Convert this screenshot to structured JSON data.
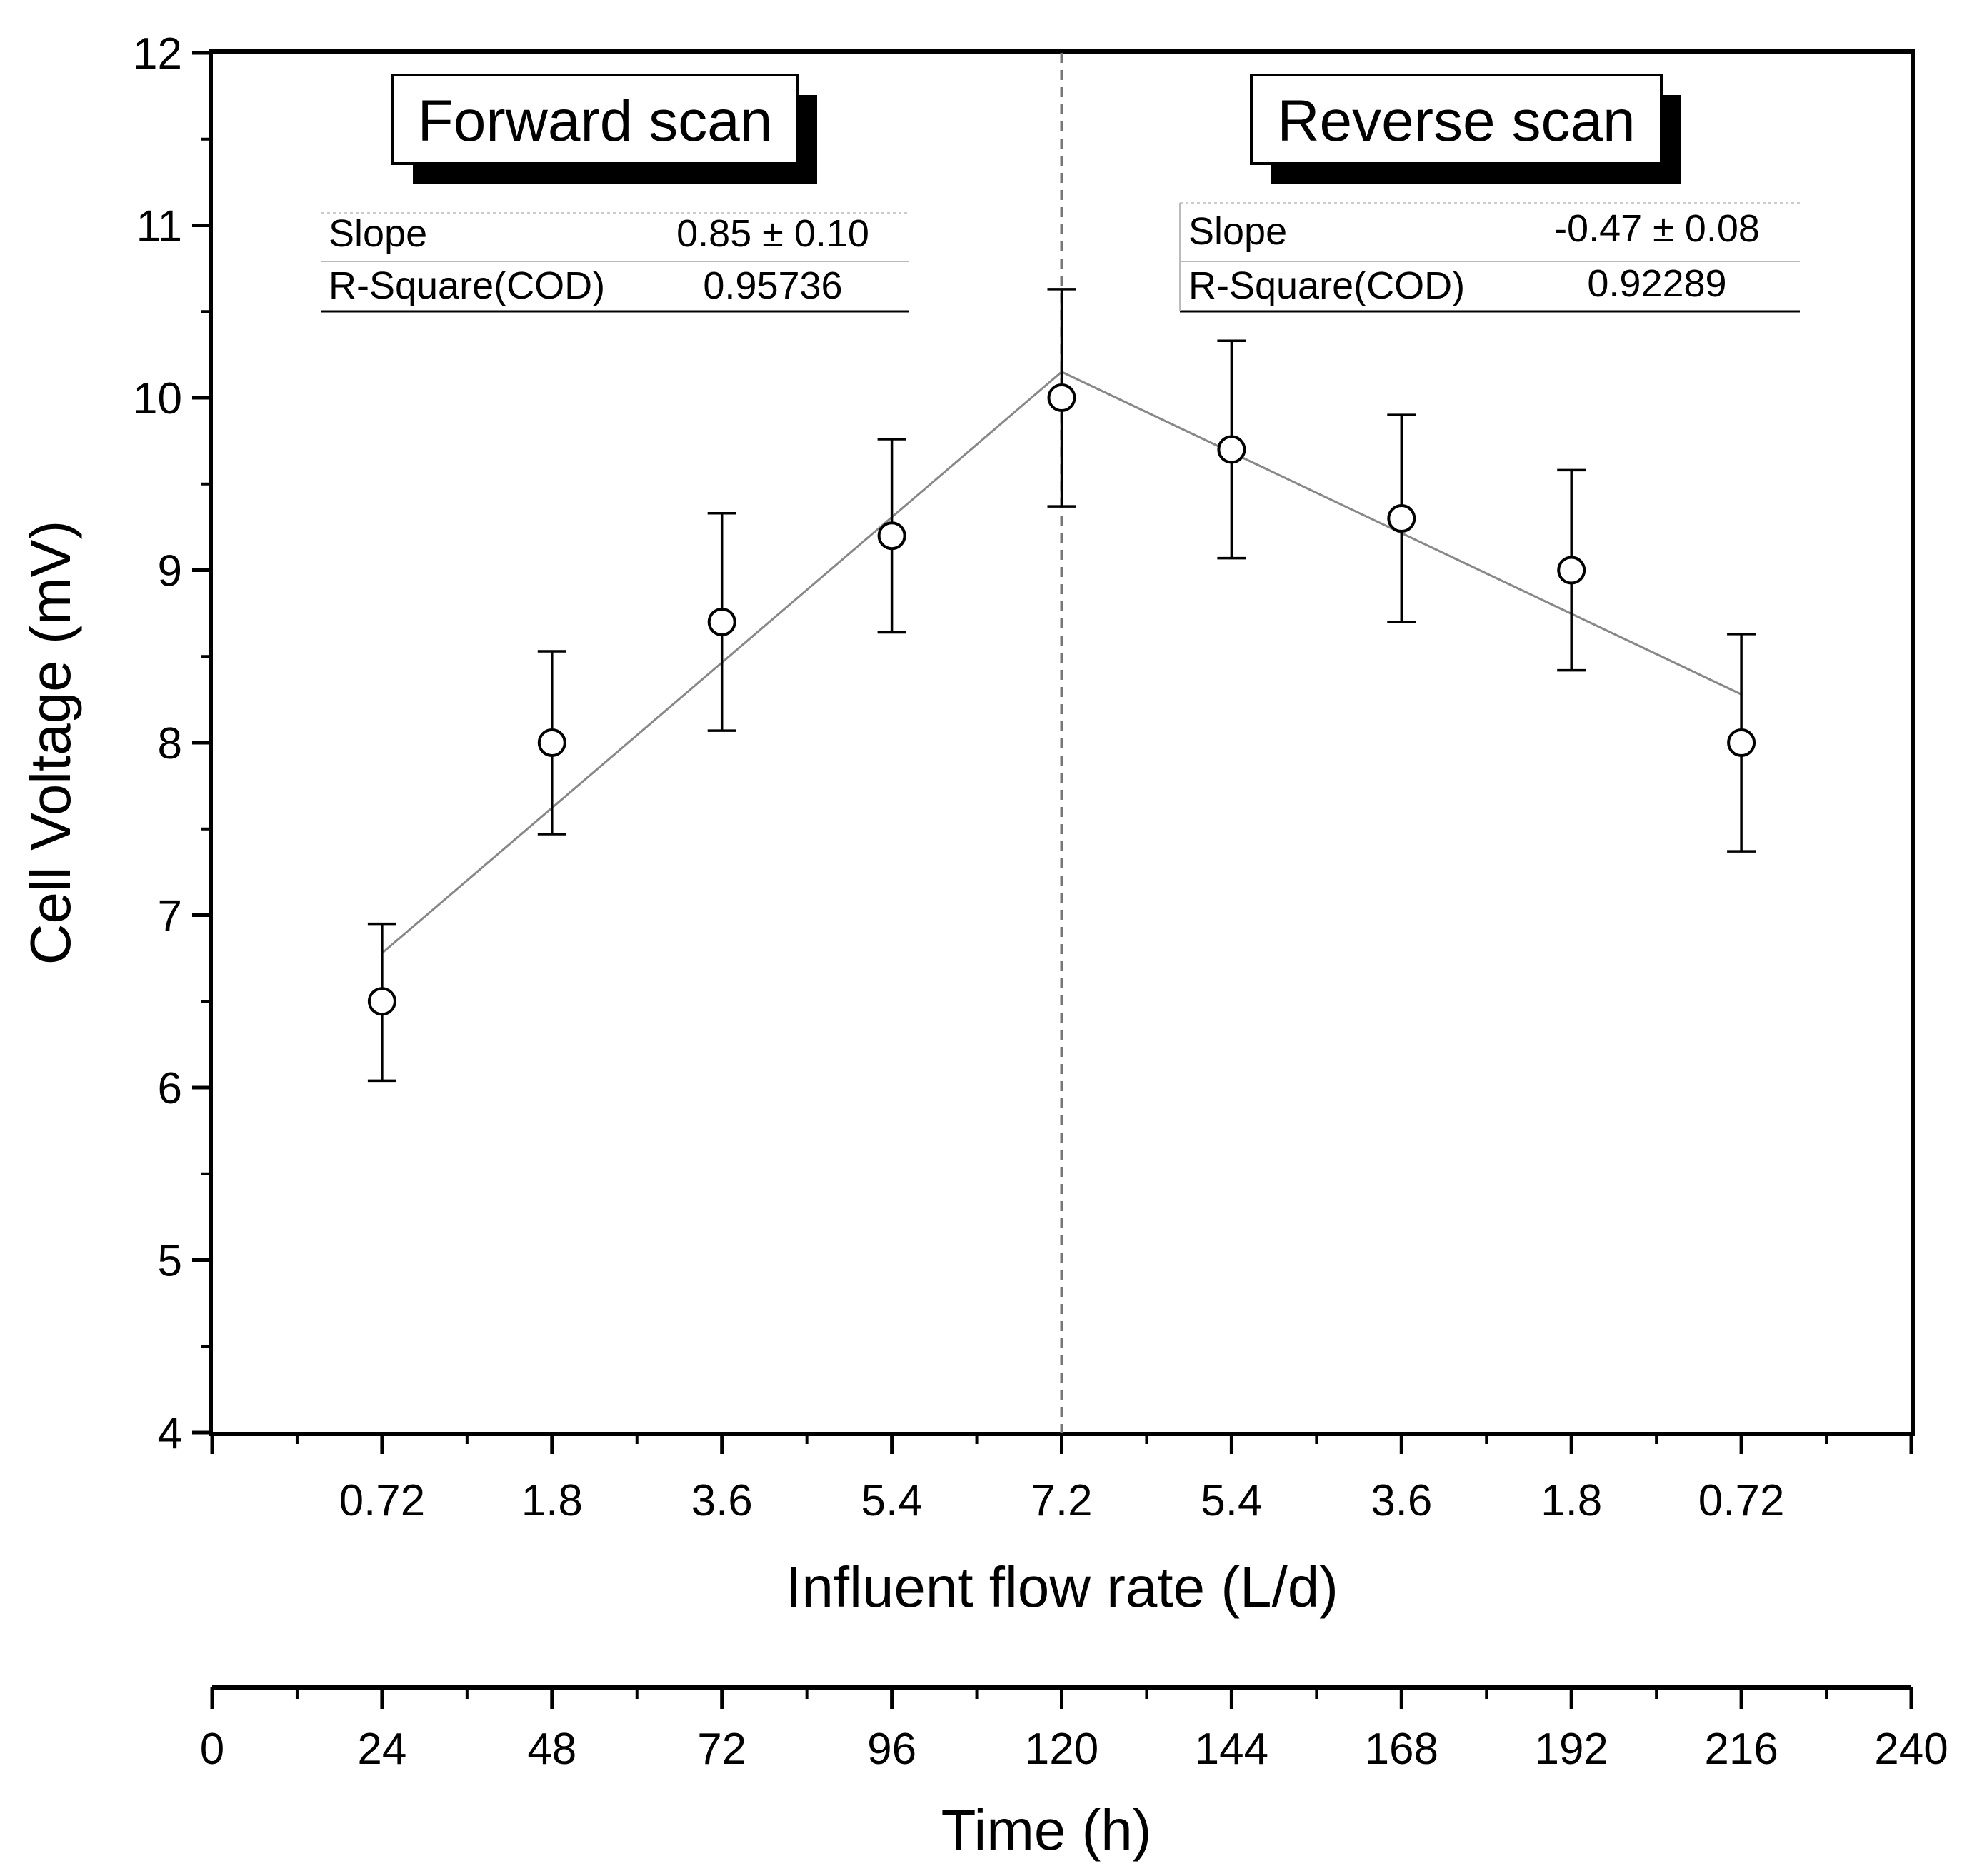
{
  "chart_data": {
    "type": "scatter",
    "x": [
      24,
      48,
      72,
      96,
      120,
      144,
      168,
      192,
      216
    ],
    "xlim": [
      0,
      240
    ],
    "ylim": [
      4,
      12
    ],
    "flow_rate_ticks": [
      "0.72",
      "1.8",
      "3.6",
      "5.4",
      "7.2",
      "5.4",
      "3.6",
      "1.8",
      "0.72"
    ],
    "y_ticks": [
      "4",
      "5",
      "6",
      "7",
      "8",
      "9",
      "10",
      "11",
      "12"
    ],
    "y_tick_values": [
      4,
      5,
      6,
      7,
      8,
      9,
      10,
      11,
      12
    ],
    "time_ticks": [
      "0",
      "24",
      "48",
      "72",
      "96",
      "120",
      "144",
      "168",
      "192",
      "216",
      "240"
    ],
    "time_tick_values": [
      0,
      24,
      48,
      72,
      96,
      120,
      144,
      168,
      192,
      216,
      240
    ],
    "xlabel": "Influent flow rate (L/d)",
    "xlabel2": "Time (h)",
    "ylabel": "Cell Voltage (mV)",
    "series": [
      {
        "name": "Cell Voltage",
        "values": [
          6.5,
          8.0,
          8.7,
          9.2,
          10.0,
          9.7,
          9.3,
          9.0,
          8.0
        ],
        "error_plus": [
          0.45,
          0.53,
          0.63,
          0.56,
          0.63,
          0.63,
          0.6,
          0.58,
          0.63
        ],
        "error_minus": [
          0.46,
          0.53,
          0.63,
          0.56,
          0.63,
          0.63,
          0.6,
          0.58,
          0.63
        ]
      }
    ],
    "fit_lines": [
      {
        "name": "Forward fit",
        "x": [
          24,
          120
        ],
        "y": [
          6.78,
          10.15
        ]
      },
      {
        "name": "Reverse fit",
        "x": [
          120,
          216
        ],
        "y": [
          10.15,
          8.28
        ]
      }
    ],
    "divider_x": 120,
    "annotations": {
      "forward": {
        "title": "Forward scan",
        "slope_label": "Slope",
        "slope_value": "0.85 ± 0.10",
        "r2_label": "R-Square(COD)",
        "r2_value": "0.95736"
      },
      "reverse": {
        "title": "Reverse scan",
        "slope_label": "Slope",
        "slope_value": "-0.47 ± 0.08",
        "r2_label": "R-Square(COD)",
        "r2_value": "0.92289"
      }
    }
  }
}
